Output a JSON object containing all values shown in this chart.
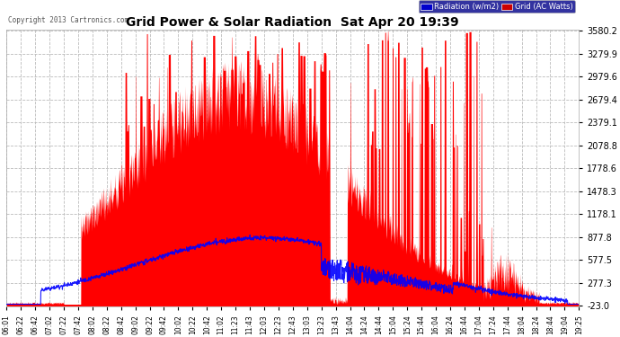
{
  "title": "Grid Power & Solar Radiation  Sat Apr 20 19:39",
  "copyright": "Copyright 2013 Cartronics.com",
  "legend_radiation": "Radiation (w/m2)",
  "legend_grid": "Grid (AC Watts)",
  "yticks": [
    3580.2,
    3279.9,
    2979.6,
    2679.4,
    2379.1,
    2078.8,
    1778.6,
    1478.3,
    1178.1,
    877.8,
    577.5,
    277.3,
    -23.0
  ],
  "ymin": -23.0,
  "ymax": 3580.2,
  "bg_color": "#ffffff",
  "plot_bg_color": "#ffffff",
  "grid_color": "#bbbbbb",
  "red_fill_color": "#ff0000",
  "blue_line_color": "#0000ff",
  "title_color": "#000000",
  "tick_label_color": "#000000",
  "copyright_color": "#555555",
  "xtick_labels": [
    "06:01",
    "06:22",
    "06:42",
    "07:02",
    "07:22",
    "07:42",
    "08:02",
    "08:22",
    "08:42",
    "09:02",
    "09:22",
    "09:42",
    "10:02",
    "10:22",
    "10:42",
    "11:02",
    "11:23",
    "11:43",
    "12:03",
    "12:23",
    "12:43",
    "13:03",
    "13:23",
    "13:43",
    "14:04",
    "14:24",
    "14:44",
    "15:04",
    "15:24",
    "15:44",
    "16:04",
    "16:24",
    "16:44",
    "17:04",
    "17:24",
    "17:44",
    "18:04",
    "18:24",
    "18:44",
    "19:04",
    "19:25"
  ]
}
